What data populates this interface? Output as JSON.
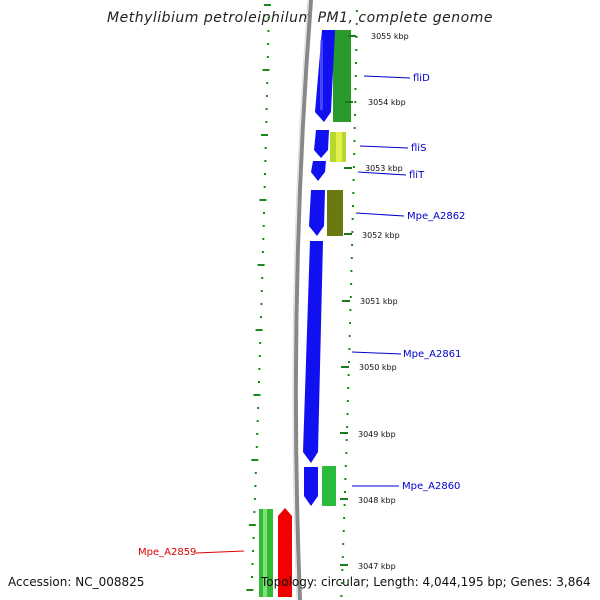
{
  "title": "Methylibium petroleiphilum PM1, complete genome",
  "footer": {
    "accession": "Accession: NC_008825",
    "summary": "Topology: circular; Length: 4,044,195 bp; Genes: 3,864"
  },
  "colors": {
    "forward_cds": "#1010f0",
    "reverse_cds": "#f00000",
    "gc_high": "#22aa22",
    "gc_low": "#c8e830",
    "gc_olive": "#6a7a10",
    "backbone": "#888888",
    "tick": "#1a7a1a",
    "label_forward": "#0000cc",
    "label_reverse": "#dd0000"
  },
  "scale": {
    "unit": "kbp",
    "ticks": [
      {
        "kbp": 3055,
        "label": "3055 kbp"
      },
      {
        "kbp": 3054,
        "label": "3054 kbp"
      },
      {
        "kbp": 3053,
        "label": "3053 kbp"
      },
      {
        "kbp": 3052,
        "label": "3052 kbp"
      },
      {
        "kbp": 3051,
        "label": "3051 kbp"
      },
      {
        "kbp": 3050,
        "label": "3050 kbp"
      },
      {
        "kbp": 3049,
        "label": "3049 kbp"
      },
      {
        "kbp": 3048,
        "label": "3048 kbp"
      },
      {
        "kbp": 3047,
        "label": "3047 kbp"
      }
    ]
  },
  "genes": [
    {
      "name": "fliD",
      "strand": "forward",
      "start_kbp": 3053.7,
      "end_kbp": 3055.4
    },
    {
      "name": "fliS",
      "strand": "forward",
      "start_kbp": 3053.35,
      "end_kbp": 3053.8
    },
    {
      "name": "fliT",
      "strand": "forward",
      "start_kbp": 3052.95,
      "end_kbp": 3053.25
    },
    {
      "name": "Mpe_A2862",
      "strand": "forward",
      "start_kbp": 3052.1,
      "end_kbp": 3052.85
    },
    {
      "name": "Mpe_A2861",
      "strand": "forward",
      "start_kbp": 3047.6,
      "end_kbp": 3052.0
    },
    {
      "name": "Mpe_A2860",
      "strand": "forward",
      "start_kbp": 3047.6,
      "end_kbp": 3048.5
    },
    {
      "name": "Mpe_A2859",
      "strand": "reverse",
      "start_kbp": 3046.5,
      "end_kbp": 3047.9
    }
  ]
}
